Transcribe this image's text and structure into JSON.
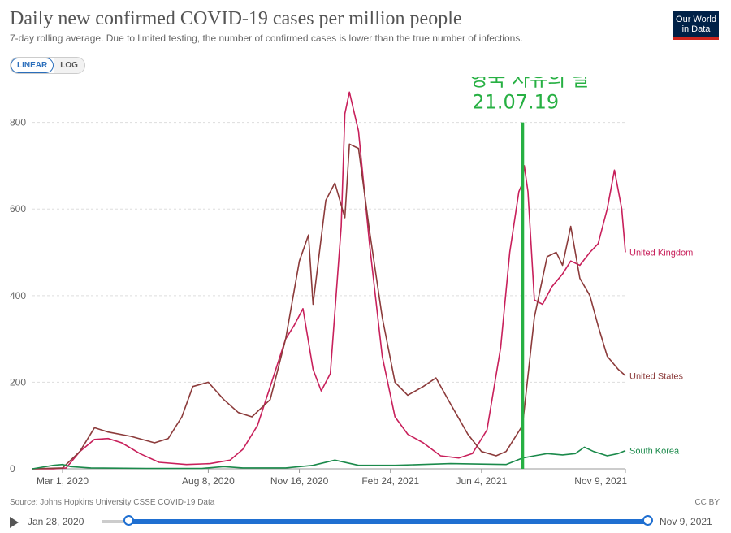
{
  "header": {
    "title": "Daily new confirmed COVID-19 cases per million people",
    "subtitle": "7-day rolling average. Due to limited testing, the number of confirmed cases is lower than the true number of infections.",
    "logo_line1": "Our World",
    "logo_line2": "in Data"
  },
  "controls": {
    "linear_label": "LINEAR",
    "log_label": "LOG",
    "active": "linear"
  },
  "footer": {
    "source": "Source: Johns Hopkins University CSSE COVID-19 Data",
    "license": "CC BY"
  },
  "timeline": {
    "start_label": "Jan 28, 2020",
    "end_label": "Nov 9, 2021",
    "range_start": "2020-01-28",
    "range_end": "2021-11-09"
  },
  "colors": {
    "uk": "#c8205b",
    "us": "#8c3b3b",
    "sk": "#1b8a4b",
    "marker": "#27b043",
    "grid": "#dddddd"
  },
  "chart_data": {
    "type": "line",
    "x_axis": {
      "type": "date",
      "ticks": [
        "2020-03-01",
        "2020-08-08",
        "2020-11-16",
        "2021-02-24",
        "2021-06-04",
        "2021-11-09"
      ],
      "tick_labels": [
        "Mar 1, 2020",
        "Aug 8, 2020",
        "Nov 16, 2020",
        "Feb 24, 2021",
        "Jun 4, 2021",
        "Nov 9, 2021"
      ],
      "range": [
        "2020-01-28",
        "2021-11-09"
      ]
    },
    "y_axis": {
      "ticks": [
        0,
        200,
        400,
        600,
        800
      ],
      "ylim": [
        0,
        880
      ]
    },
    "grid": "horizontal",
    "legend": "end-of-line labels",
    "series": [
      {
        "name": "United Kingdom",
        "color": "#c8205b",
        "x": [
          "2020-01-28",
          "2020-02-20",
          "2020-03-05",
          "2020-03-20",
          "2020-04-05",
          "2020-04-20",
          "2020-05-05",
          "2020-05-25",
          "2020-06-15",
          "2020-07-15",
          "2020-08-10",
          "2020-09-01",
          "2020-09-15",
          "2020-10-01",
          "2020-10-15",
          "2020-11-01",
          "2020-11-10",
          "2020-11-20",
          "2020-12-01",
          "2020-12-10",
          "2020-12-20",
          "2021-01-01",
          "2021-01-05",
          "2021-01-10",
          "2021-01-20",
          "2021-02-01",
          "2021-02-15",
          "2021-03-01",
          "2021-03-15",
          "2021-04-01",
          "2021-04-20",
          "2021-05-10",
          "2021-05-25",
          "2021-06-10",
          "2021-06-25",
          "2021-07-05",
          "2021-07-15",
          "2021-07-19",
          "2021-07-21",
          "2021-07-25",
          "2021-08-01",
          "2021-08-10",
          "2021-08-20",
          "2021-09-01",
          "2021-09-10",
          "2021-09-20",
          "2021-10-01",
          "2021-10-10",
          "2021-10-20",
          "2021-10-28",
          "2021-11-05",
          "2021-11-09"
        ],
        "y": [
          0,
          0,
          2,
          40,
          68,
          70,
          60,
          35,
          15,
          10,
          12,
          20,
          45,
          100,
          190,
          300,
          330,
          370,
          230,
          180,
          220,
          560,
          820,
          870,
          780,
          520,
          260,
          120,
          80,
          60,
          30,
          25,
          35,
          90,
          280,
          500,
          640,
          660,
          700,
          640,
          390,
          380,
          420,
          450,
          480,
          470,
          500,
          520,
          600,
          690,
          600,
          500
        ]
      },
      {
        "name": "United States",
        "color": "#8c3b3b",
        "x": [
          "2020-01-28",
          "2020-03-01",
          "2020-03-20",
          "2020-04-05",
          "2020-04-20",
          "2020-05-15",
          "2020-06-10",
          "2020-06-25",
          "2020-07-10",
          "2020-07-22",
          "2020-08-08",
          "2020-08-25",
          "2020-09-10",
          "2020-09-25",
          "2020-10-15",
          "2020-11-01",
          "2020-11-16",
          "2020-11-26",
          "2020-12-01",
          "2020-12-15",
          "2020-12-25",
          "2021-01-05",
          "2021-01-10",
          "2021-01-20",
          "2021-02-01",
          "2021-02-15",
          "2021-03-01",
          "2021-03-15",
          "2021-04-01",
          "2021-04-15",
          "2021-05-01",
          "2021-05-20",
          "2021-06-04",
          "2021-06-20",
          "2021-07-01",
          "2021-07-19",
          "2021-08-01",
          "2021-08-15",
          "2021-08-25",
          "2021-09-01",
          "2021-09-10",
          "2021-09-20",
          "2021-10-01",
          "2021-10-10",
          "2021-10-20",
          "2021-11-01",
          "2021-11-09"
        ],
        "y": [
          0,
          2,
          40,
          95,
          85,
          75,
          60,
          70,
          120,
          190,
          200,
          160,
          130,
          120,
          160,
          300,
          480,
          540,
          380,
          620,
          660,
          580,
          750,
          740,
          550,
          350,
          200,
          170,
          190,
          210,
          150,
          80,
          40,
          30,
          40,
          100,
          350,
          490,
          500,
          470,
          560,
          440,
          400,
          330,
          260,
          230,
          215
        ]
      },
      {
        "name": "South Korea",
        "color": "#1b8a4b",
        "x": [
          "2020-01-28",
          "2020-02-20",
          "2020-03-01",
          "2020-03-10",
          "2020-04-01",
          "2020-06-01",
          "2020-08-01",
          "2020-08-25",
          "2020-09-15",
          "2020-11-01",
          "2020-12-01",
          "2020-12-25",
          "2021-01-20",
          "2021-03-01",
          "2021-05-01",
          "2021-07-01",
          "2021-07-19",
          "2021-08-01",
          "2021-08-15",
          "2021-09-01",
          "2021-09-15",
          "2021-09-25",
          "2021-10-05",
          "2021-10-20",
          "2021-11-01",
          "2021-11-09"
        ],
        "y": [
          0,
          8,
          10,
          5,
          2,
          1,
          1,
          5,
          2,
          2,
          8,
          20,
          8,
          8,
          12,
          10,
          25,
          30,
          35,
          32,
          35,
          50,
          40,
          30,
          35,
          42
        ]
      }
    ],
    "annotations": [
      {
        "type": "vertical-line",
        "x": "2021-07-19",
        "y_top": 800,
        "label_line1": "영국 자유의 날",
        "label_line2": "21.07.19"
      }
    ]
  }
}
